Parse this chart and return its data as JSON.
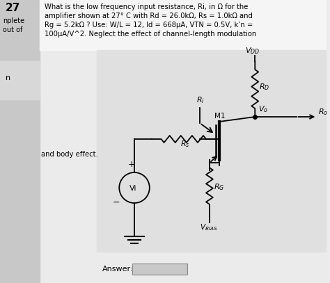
{
  "title_line1": "What is the low frequency input resistance, Ri, in Ω for the",
  "title_line2": "amplifier shown at 27° C with Rd = 26.0kΩ, Rs = 1.0kΩ and",
  "title_line3": "Rg = 5.2kΩ ? Use: W/L = 12, Id = 668μA, VTN = 0.5V, k’n =",
  "title_line4": "100μA/V^2. Neglect the effect of channel-length modulation",
  "sidebar_27": "27",
  "sidebar_nplete": "nplete",
  "sidebar_out_of": "out of",
  "sidebar_n": "n",
  "answer_label": "Answer:",
  "body_effect_label": "and body effect.",
  "bg_color": "#ebebeb",
  "circuit_bg": "#e0e0e0",
  "sidebar_bg": "#c8c8c8",
  "text_box_bg": "#d4d4d4"
}
